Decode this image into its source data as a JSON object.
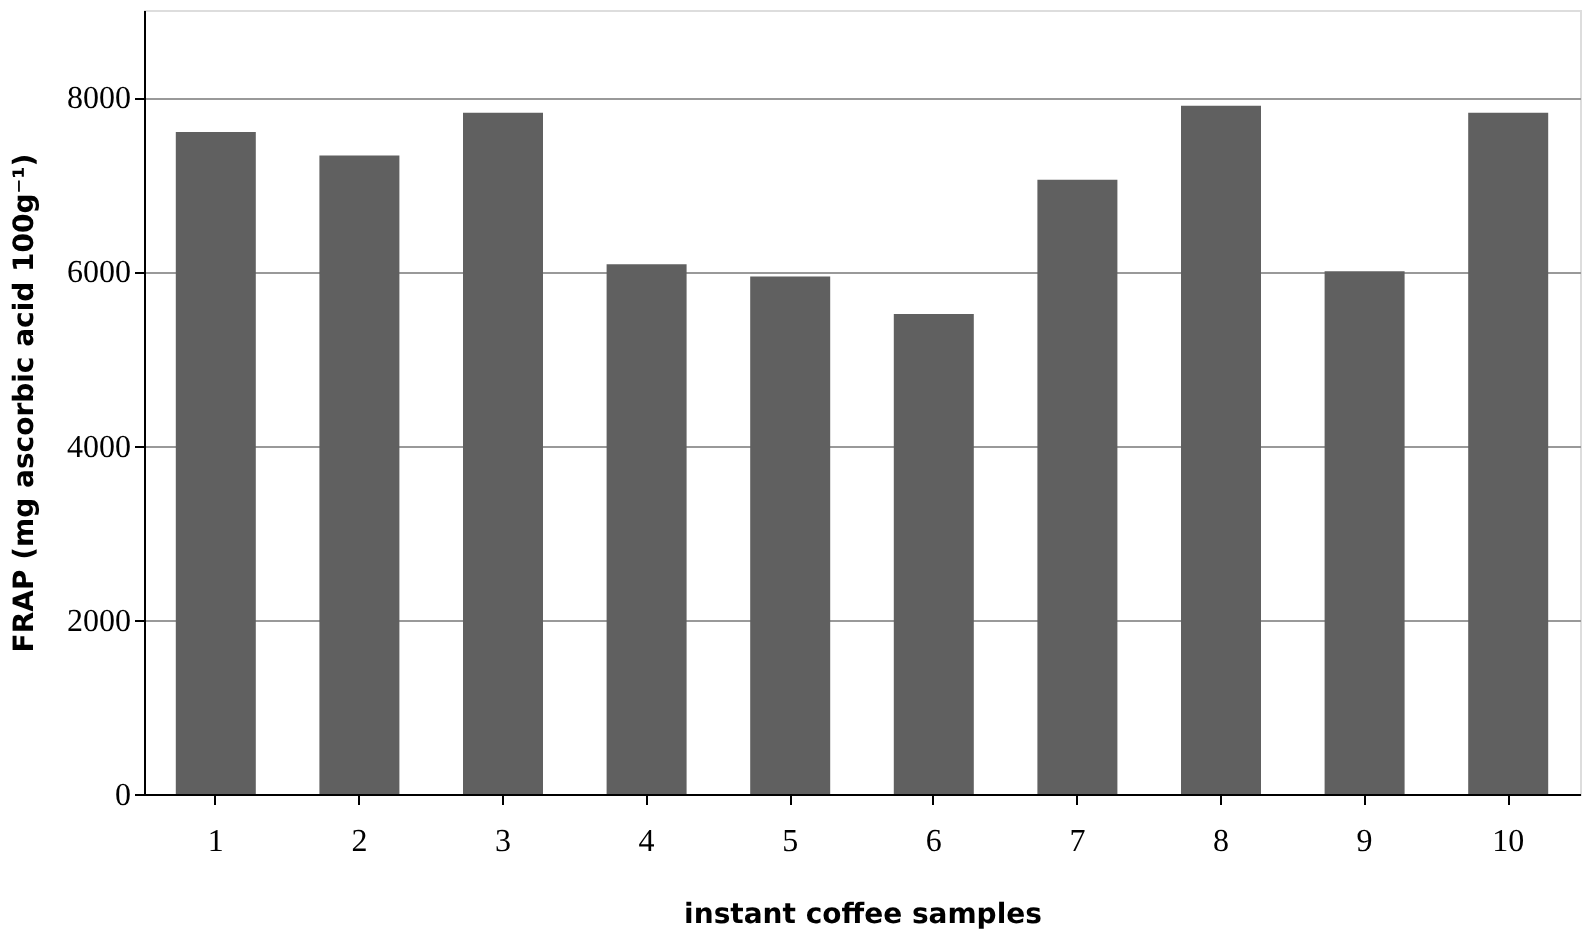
{
  "chart_data": {
    "type": "bar",
    "xlabel": "instant coffee samples",
    "ylabel": "FRAP (mg ascorbic acid 100g⁻¹)",
    "categories": [
      "1",
      "2",
      "3",
      "4",
      "5",
      "6",
      "7",
      "8",
      "9",
      "10"
    ],
    "values": [
      7600,
      7330,
      7820,
      6080,
      5940,
      5510,
      7050,
      7900,
      6000,
      7820
    ],
    "color": "#606060",
    "ylim": [
      0,
      9000
    ],
    "yticks": [
      0,
      2000,
      4000,
      6000,
      8000
    ],
    "grid": "y"
  }
}
